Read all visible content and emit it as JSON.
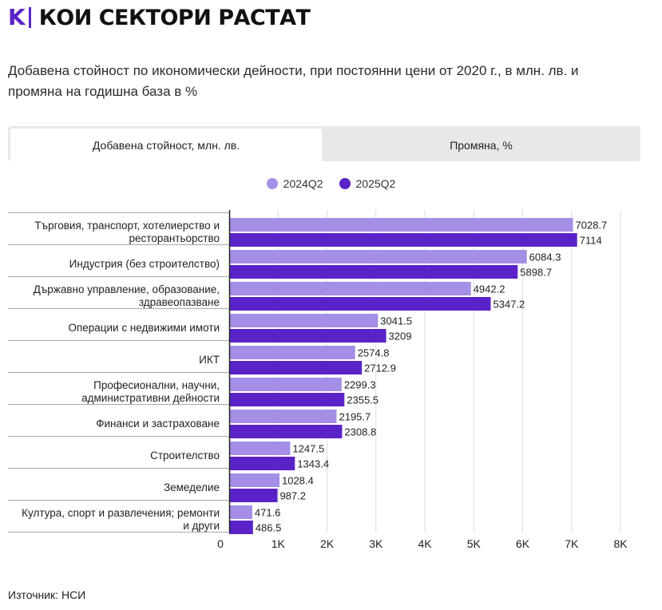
{
  "header": {
    "logo": "K",
    "title": "КОИ СЕКТОРИ РАСТАТ"
  },
  "subtitle": "Добавена стойност по икономически дейности, при постоянни цени от 2020 г., в млн. лв. и промяна на годишна база в %",
  "tabs": [
    {
      "label": "Добавена стойност, млн. лв.",
      "active": true
    },
    {
      "label": "Промяна, %",
      "active": false
    }
  ],
  "colors": {
    "series1": "#a58ee6",
    "series2": "#5a23c8",
    "brand": "#5a23c8"
  },
  "chart_data": {
    "type": "bar",
    "orientation": "horizontal",
    "categories": [
      [
        "Търговия, транспорт, хотелиерство и",
        "ресторантьорство"
      ],
      [
        "Индустрия (без строителство)"
      ],
      [
        "Държавно управление, образование,",
        "здравеопазване"
      ],
      [
        "Операции с недвижими имоти"
      ],
      [
        "ИКТ"
      ],
      [
        "Професионални, научни,",
        "административни дейности"
      ],
      [
        "Финанси и застраховане"
      ],
      [
        "Строителство"
      ],
      [
        "Земеделие"
      ],
      [
        "Култура, спорт и развлечения; ремонти",
        "и други"
      ]
    ],
    "series": [
      {
        "name": "2024Q2",
        "values": [
          7028.7,
          6084.3,
          4942.2,
          3041.5,
          2574.8,
          2299.3,
          2195.7,
          1247.5,
          1028.4,
          471.6
        ]
      },
      {
        "name": "2025Q2",
        "values": [
          7114,
          5898.7,
          5347.2,
          3209,
          2712.9,
          2355.5,
          2308.8,
          1343.4,
          987.2,
          486.5
        ]
      }
    ],
    "xlim": [
      0,
      8000
    ],
    "ticks": [
      0,
      1000,
      2000,
      3000,
      4000,
      5000,
      6000,
      7000,
      8000
    ],
    "tick_labels": [
      "0",
      "1K",
      "2K",
      "3K",
      "4K",
      "5K",
      "6K",
      "7K",
      "8K"
    ],
    "grid": true,
    "legend_position": "top-center"
  },
  "source": "Източник: НСИ"
}
